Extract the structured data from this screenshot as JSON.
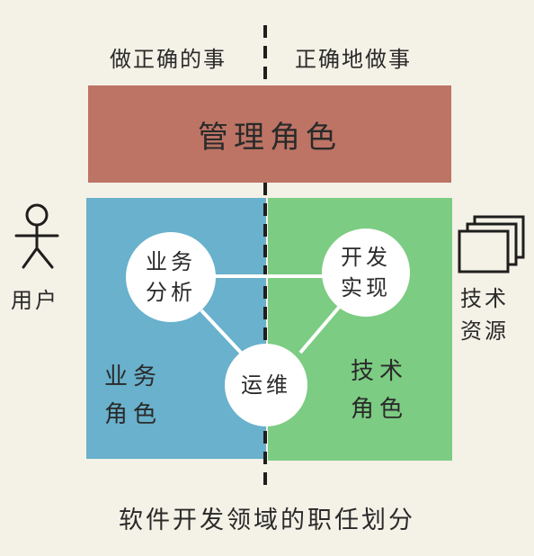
{
  "top_labels": {
    "left": "做正确的事",
    "right": "正确地做事"
  },
  "management": "管理角色",
  "business_role": {
    "line1": "业务",
    "line2": "角色"
  },
  "tech_role": {
    "line1": "技术",
    "line2": "角色"
  },
  "business_analysis": {
    "line1": "业务",
    "line2": "分析"
  },
  "dev_impl": {
    "line1": "开发",
    "line2": "实现"
  },
  "ops": "运维",
  "user_label": "用户",
  "tech_resources": {
    "line1": "技术",
    "line2": "资源"
  },
  "caption": "软件开发领域的职任划分"
}
